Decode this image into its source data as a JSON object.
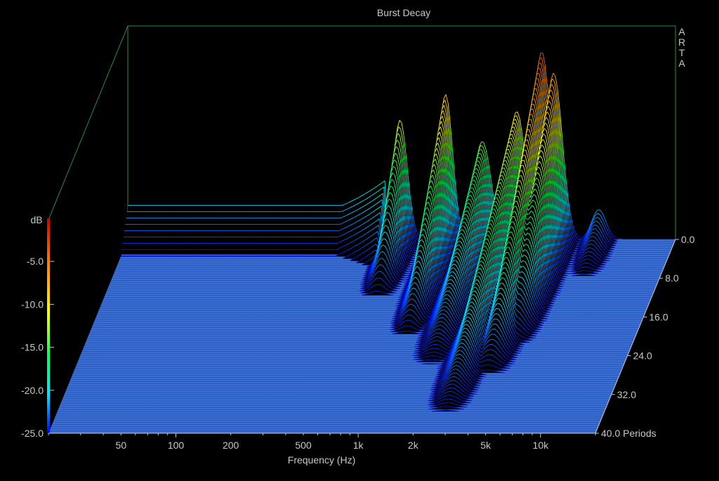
{
  "window": {
    "title": "Burst Decay",
    "vendor": "ARTA"
  },
  "chart_data": {
    "type": "waterfall",
    "title": "Burst Decay",
    "xlabel": "Frequency (Hz)",
    "ylabel": "dB",
    "depth_label": "Periods",
    "x_scale": "log",
    "xlim": [
      20,
      20000
    ],
    "x_ticks": [
      50,
      100,
      200,
      500,
      1000,
      2000,
      5000,
      10000
    ],
    "x_tick_labels": [
      "50",
      "100",
      "200",
      "500",
      "1k",
      "2k",
      "5k",
      "10k"
    ],
    "ylim": [
      -25,
      0
    ],
    "y_ticks": [
      -5,
      -10,
      -15,
      -20,
      -25
    ],
    "y_tick_labels": [
      "-5.0",
      "-10.0",
      "-15.0",
      "-20.0",
      "-25.0"
    ],
    "depth_lim": [
      0,
      40
    ],
    "depth_ticks": [
      0,
      8,
      16,
      24,
      32,
      40
    ],
    "depth_tick_labels": [
      "0.0",
      "8.0",
      "16.0",
      "24.0",
      "32.0",
      "40.0 Periods"
    ],
    "colormap": [
      "#0000ff",
      "#00e5ff",
      "#00ff66",
      "#ffff00",
      "#ff8800",
      "#cc0000"
    ],
    "floor_color": "#3a6fd8",
    "frame_color": "#2e8b3a",
    "peaks": [
      {
        "freq": 620,
        "level": -11.0,
        "decay_periods": 12
      },
      {
        "freq": 1100,
        "level": -8.0,
        "decay_periods": 20
      },
      {
        "freq": 1750,
        "level": -13.5,
        "decay_periods": 26
      },
      {
        "freq": 2700,
        "level": -10.0,
        "decay_periods": 36
      },
      {
        "freq": 3700,
        "level": -3.0,
        "decay_periods": 28
      },
      {
        "freq": 4300,
        "level": -5.5,
        "decay_periods": 22
      },
      {
        "freq": 7600,
        "level": -21.5,
        "decay_periods": 8
      }
    ],
    "low_freq_level": -21.0,
    "grid": false
  }
}
